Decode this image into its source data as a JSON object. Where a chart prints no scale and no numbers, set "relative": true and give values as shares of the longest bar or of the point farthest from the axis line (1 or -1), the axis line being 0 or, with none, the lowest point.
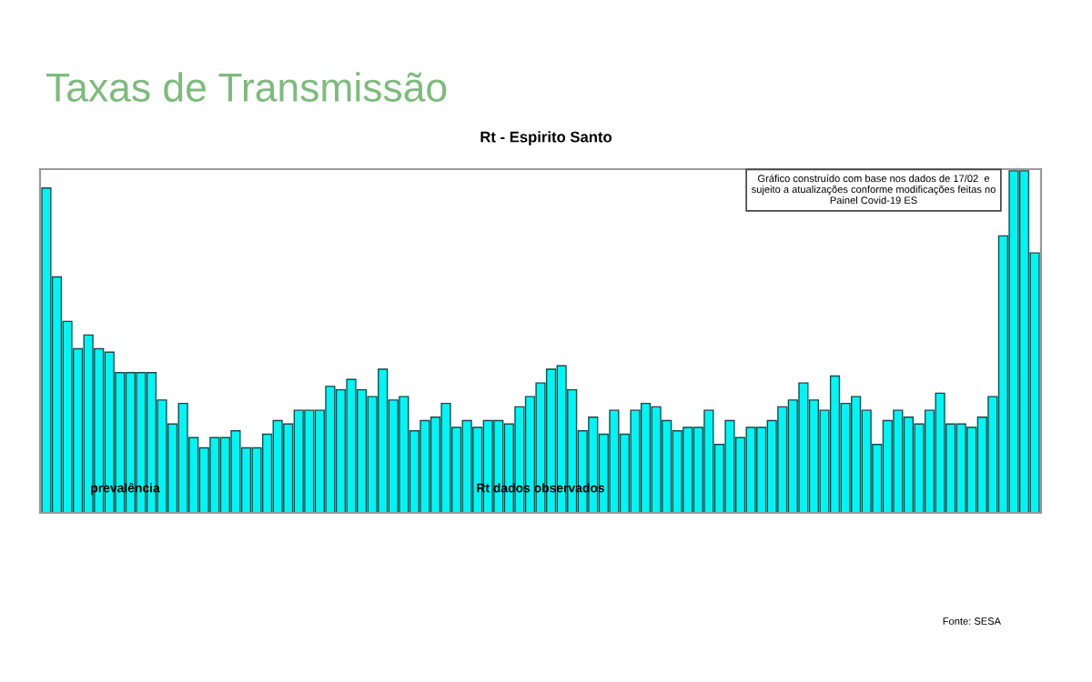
{
  "chart_data": {
    "type": "bar",
    "title": "Taxas de Transmissão",
    "subtitle": "Rt - Espirito Santo",
    "relative": true,
    "color": "#00f5f5",
    "categories": [
      null,
      null,
      null,
      null,
      null,
      null,
      null,
      null,
      null,
      null,
      null,
      null,
      null,
      null,
      null,
      null,
      null,
      null,
      null,
      null,
      null,
      null,
      null,
      null,
      null,
      null,
      null,
      null,
      null,
      null,
      null,
      null,
      null,
      null,
      null,
      null,
      null,
      null,
      null,
      null,
      null,
      null,
      null,
      null,
      null,
      null,
      null,
      null,
      null,
      null,
      null,
      null,
      null,
      null,
      null,
      null,
      null,
      null,
      null,
      null,
      null,
      null,
      null,
      null,
      null,
      null,
      null,
      null,
      null,
      null,
      null,
      null,
      null,
      null,
      null,
      null,
      null,
      null,
      null,
      null,
      null,
      null,
      null,
      null,
      null,
      null,
      null,
      null,
      null,
      null,
      null,
      null,
      null,
      null,
      null
    ],
    "values": [
      0.95,
      0.69,
      0.56,
      0.48,
      0.52,
      0.48,
      0.47,
      0.41,
      0.41,
      0.41,
      0.41,
      0.33,
      0.26,
      0.32,
      0.22,
      0.19,
      0.22,
      0.22,
      0.24,
      0.19,
      0.19,
      0.23,
      0.27,
      0.26,
      0.3,
      0.3,
      0.3,
      0.37,
      0.36,
      0.39,
      0.36,
      0.34,
      0.42,
      0.33,
      0.34,
      0.24,
      0.27,
      0.28,
      0.32,
      0.25,
      0.27,
      0.25,
      0.27,
      0.27,
      0.26,
      0.31,
      0.34,
      0.38,
      0.42,
      0.43,
      0.36,
      0.24,
      0.28,
      0.23,
      0.3,
      0.23,
      0.3,
      0.32,
      0.31,
      0.27,
      0.24,
      0.25,
      0.25,
      0.3,
      0.2,
      0.27,
      0.22,
      0.25,
      0.25,
      0.27,
      0.31,
      0.33,
      0.38,
      0.33,
      0.3,
      0.4,
      0.32,
      0.34,
      0.3,
      0.2,
      0.27,
      0.3,
      0.28,
      0.26,
      0.3,
      0.35,
      0.26,
      0.26,
      0.25,
      0.28,
      0.34,
      0.81,
      1,
      1,
      0.76
    ],
    "annotations": [
      "prevalência",
      "Rt dados observados",
      "Gráfico construído com base nos dados de 17/02  e sujeito a atualizações conforme modificações feitas no Painel Covid-19 ES",
      "Fonte: SESA"
    ],
    "grid": false,
    "legend": false
  }
}
